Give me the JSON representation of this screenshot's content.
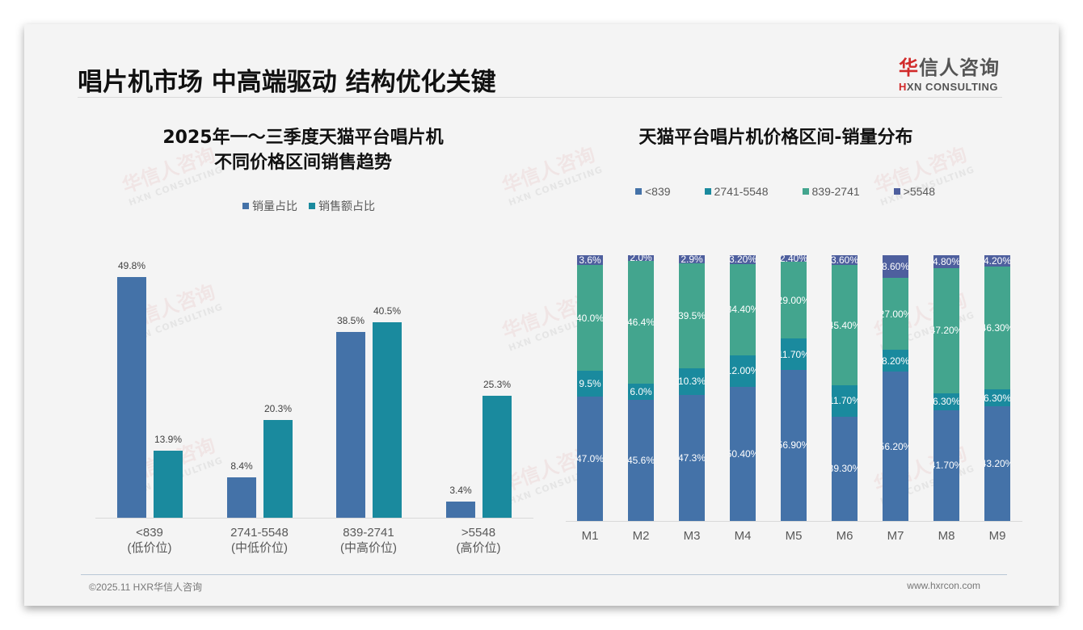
{
  "page": {
    "title": "唱片机市场 中高端驱动 结构优化关键",
    "logo": {
      "cn_first": "华",
      "cn_rest": "信人咨询",
      "en_first": "H",
      "en_rest": "XN CONSULTING"
    },
    "watermark": {
      "cn": "华信人咨询",
      "en": "HXN CONSULTING"
    },
    "footer": {
      "left": "©2025.11 HXR华信人咨询",
      "right": "www.hxrcon.com"
    }
  },
  "left_chart": {
    "title_line1": "2025年一～三季度天猫平台唱片机",
    "title_line2": "不同价格区间销售趋势",
    "legend": [
      {
        "label": "销量占比",
        "color": "#4472a8"
      },
      {
        "label": "销售额占比",
        "color": "#1a8a9e"
      }
    ],
    "labels": [
      {
        "line1": "<839",
        "line2": "(低价位)"
      },
      {
        "line1": "2741-5548",
        "line2": "(中低价位)"
      },
      {
        "line1": "839-2741",
        "line2": "(中高价位)"
      },
      {
        "line1": ">5548",
        "line2": "(高价位)"
      }
    ],
    "value_labels": {
      "volume": [
        "49.8%",
        "8.4%",
        "38.5%",
        "3.4%"
      ],
      "revenue": [
        "13.9%",
        "20.3%",
        "40.5%",
        "25.3%"
      ]
    }
  },
  "right_chart": {
    "title": "天猫平台唱片机价格区间-销量分布",
    "legend": [
      {
        "label": "<839",
        "color": "#4472a8"
      },
      {
        "label": "2741-5548",
        "color": "#1a8a9e"
      },
      {
        "label": "839-2741",
        "color": "#43a58e"
      },
      {
        "label": ">5548",
        "color": "#4e5f9e"
      }
    ],
    "months": [
      "M1",
      "M2",
      "M3",
      "M4",
      "M5",
      "M6",
      "M7",
      "M8",
      "M9"
    ],
    "segment_labels": {
      "lt839": [
        "47.0%",
        "45.6%",
        "47.3%",
        "50.40%",
        "56.90%",
        "39.30%",
        "56.20%",
        "41.70%",
        "43.20%"
      ],
      "r2741_5548": [
        "9.5%",
        "6.0%",
        "10.3%",
        "12.00%",
        "11.70%",
        "11.70%",
        "8.20%",
        "6.30%",
        "6.30%"
      ],
      "r839_2741": [
        "40.0%",
        "46.4%",
        "39.5%",
        "34.40%",
        "29.00%",
        "45.40%",
        "27.00%",
        "47.20%",
        "46.30%"
      ],
      "gt5548": [
        "3.6%",
        "2.0%",
        "2.9%",
        "3.20%",
        "2.40%",
        "3.60%",
        "8.60%",
        "4.80%",
        "4.20%"
      ]
    }
  },
  "chart_data": [
    {
      "type": "bar",
      "title": "2025年一～三季度天猫平台唱片机不同价格区间销售趋势",
      "categories": [
        "<839 (低价位)",
        "2741-5548 (中低价位)",
        "839-2741 (中高价位)",
        ">5548 (高价位)"
      ],
      "series": [
        {
          "name": "销量占比",
          "values": [
            49.8,
            8.4,
            38.5,
            3.4
          ]
        },
        {
          "name": "销售额占比",
          "values": [
            13.9,
            20.3,
            40.5,
            25.3
          ]
        }
      ],
      "xlabel": "",
      "ylabel": "%",
      "ylim": [
        0,
        55
      ],
      "legend_position": "top",
      "grid": false
    },
    {
      "type": "bar",
      "stacked": true,
      "title": "天猫平台唱片机价格区间-销量分布",
      "categories": [
        "M1",
        "M2",
        "M3",
        "M4",
        "M5",
        "M6",
        "M7",
        "M8",
        "M9"
      ],
      "series": [
        {
          "name": "<839",
          "values": [
            47.0,
            45.6,
            47.3,
            50.4,
            56.9,
            39.3,
            56.2,
            41.7,
            43.2
          ]
        },
        {
          "name": "2741-5548",
          "values": [
            9.5,
            6.0,
            10.3,
            12.0,
            11.7,
            11.7,
            8.2,
            6.3,
            6.3
          ]
        },
        {
          "name": "839-2741",
          "values": [
            40.0,
            46.4,
            39.5,
            34.4,
            29.0,
            45.4,
            27.0,
            47.2,
            46.3
          ]
        },
        {
          "name": ">5548",
          "values": [
            3.6,
            2.0,
            2.9,
            3.2,
            2.4,
            3.6,
            8.6,
            4.8,
            4.2
          ]
        }
      ],
      "xlabel": "",
      "ylabel": "%",
      "ylim": [
        0,
        100
      ],
      "legend_position": "top",
      "grid": false
    }
  ]
}
